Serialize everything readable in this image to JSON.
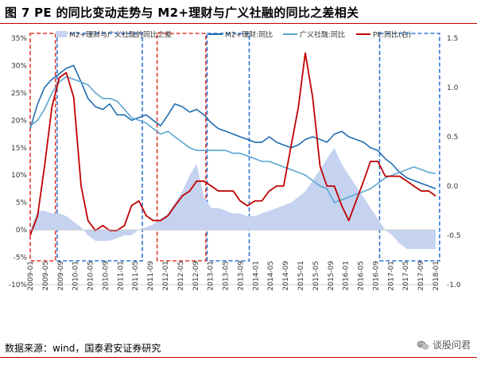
{
  "header": {
    "title": "图 7   PE 的同比变动走势与 M2+理财与广义社融的同比之差相关"
  },
  "footer": {
    "source": "数据来源：wind，国泰君安证券研究",
    "watermark": "谈股问君"
  },
  "colors": {
    "area": "#c5d3f0",
    "m2_line": "#1f6cb0",
    "social_line": "#5ba5d0",
    "pe_line": "#c00000",
    "box_red": "#e0392b",
    "box_blue": "#2e75d6"
  },
  "chart_data": {
    "type": "line",
    "legend_position": "top",
    "x_labels": [
      "2009-01",
      "2009-05",
      "2009-09",
      "2010-01",
      "2010-05",
      "2010-09",
      "2011-01",
      "2011-05",
      "2011-09",
      "2012-01",
      "2012-05",
      "2012-09",
      "2013-01",
      "2013-05",
      "2013-09",
      "2014-01",
      "2014-05",
      "2014-09",
      "2015-01",
      "2015-05",
      "2015-09",
      "2016-01",
      "2016-05",
      "2016-09",
      "2017-01",
      "2017-05",
      "2017-09",
      "2018-01"
    ],
    "x_range": [
      2009.0,
      2018.33
    ],
    "y_left": {
      "ticks": [
        "35%",
        "30%",
        "25%",
        "20%",
        "15%",
        "10%",
        "5%",
        "0%",
        "-5%",
        "-10%"
      ],
      "min": -10,
      "max": 35
    },
    "y_right": {
      "ticks": [
        "1.5",
        "1.0",
        "0.5",
        "0.0",
        "-0.5",
        "-1.0"
      ],
      "min": -1.0,
      "max": 1.5
    },
    "series": [
      {
        "name": "M2+理财与广义社融的同比之差",
        "kind": "area",
        "axis": "left",
        "x": [
          2009.0,
          2009.17,
          2009.33,
          2009.5,
          2009.67,
          2009.83,
          2010.0,
          2010.17,
          2010.33,
          2010.5,
          2010.67,
          2010.83,
          2011.0,
          2011.17,
          2011.33,
          2011.5,
          2011.67,
          2011.83,
          2012.0,
          2012.17,
          2012.33,
          2012.5,
          2012.67,
          2012.83,
          2013.0,
          2013.17,
          2013.33,
          2013.5,
          2013.67,
          2013.83,
          2014.0,
          2014.17,
          2014.33,
          2014.5,
          2014.67,
          2014.83,
          2015.0,
          2015.17,
          2015.33,
          2015.5,
          2015.67,
          2015.83,
          2016.0,
          2016.17,
          2016.33,
          2016.5,
          2016.67,
          2016.83,
          2017.0,
          2017.17,
          2017.33,
          2017.5,
          2017.67,
          2017.83,
          2018.0,
          2018.17,
          2018.33
        ],
        "values": [
          0,
          3.5,
          3.5,
          3.0,
          3.0,
          2.5,
          1.5,
          0.5,
          -1,
          -2,
          -2,
          -2,
          -1.5,
          -1,
          -1,
          0,
          0.5,
          1,
          2,
          3,
          5,
          7,
          10,
          12,
          6,
          4,
          4,
          3.5,
          3,
          3,
          2.5,
          2.5,
          3,
          3.5,
          4,
          4.5,
          5,
          6,
          7,
          9,
          11,
          13,
          15,
          12,
          10,
          8,
          6,
          4,
          2,
          0,
          -1,
          -2.5,
          -3.5,
          -3.5,
          -3.5,
          -3.5,
          -3.5
        ]
      },
      {
        "name": "M2+理财:同比",
        "kind": "line",
        "axis": "left",
        "x": [
          2009.0,
          2009.17,
          2009.33,
          2009.5,
          2009.67,
          2009.83,
          2010.0,
          2010.17,
          2010.33,
          2010.5,
          2010.67,
          2010.83,
          2011.0,
          2011.17,
          2011.33,
          2011.5,
          2011.67,
          2011.83,
          2012.0,
          2012.17,
          2012.33,
          2012.5,
          2012.67,
          2012.83,
          2013.0,
          2013.17,
          2013.33,
          2013.5,
          2013.67,
          2013.83,
          2014.0,
          2014.17,
          2014.33,
          2014.5,
          2014.67,
          2014.83,
          2015.0,
          2015.17,
          2015.33,
          2015.5,
          2015.67,
          2015.83,
          2016.0,
          2016.17,
          2016.33,
          2016.5,
          2016.67,
          2016.83,
          2017.0,
          2017.17,
          2017.33,
          2017.5,
          2017.67,
          2017.83,
          2018.0,
          2018.17,
          2018.33
        ],
        "values": [
          18.5,
          23,
          26,
          27.5,
          28.5,
          29.5,
          30,
          27,
          24,
          22.5,
          22,
          23,
          21,
          21,
          20,
          20.5,
          21,
          20,
          19,
          21,
          23,
          22.5,
          21.5,
          22,
          21,
          19.5,
          18.5,
          18,
          17.5,
          17,
          16.5,
          16,
          16,
          17,
          16,
          15.5,
          15,
          15.5,
          16.5,
          17,
          16.5,
          16,
          17.5,
          18,
          17,
          16.5,
          16,
          15,
          14.5,
          13,
          12,
          10.5,
          9.5,
          9,
          8.5,
          8,
          7.5
        ]
      },
      {
        "name": "广义社融:同比",
        "kind": "line",
        "axis": "left",
        "x": [
          2009.0,
          2009.17,
          2009.33,
          2009.5,
          2009.67,
          2009.83,
          2010.0,
          2010.17,
          2010.33,
          2010.5,
          2010.67,
          2010.83,
          2011.0,
          2011.17,
          2011.33,
          2011.5,
          2011.67,
          2011.83,
          2012.0,
          2012.17,
          2012.33,
          2012.5,
          2012.67,
          2012.83,
          2013.0,
          2013.17,
          2013.33,
          2013.5,
          2013.67,
          2013.83,
          2014.0,
          2014.17,
          2014.33,
          2014.5,
          2014.67,
          2014.83,
          2015.0,
          2015.17,
          2015.33,
          2015.5,
          2015.67,
          2015.83,
          2016.0,
          2016.17,
          2016.33,
          2016.5,
          2016.67,
          2016.83,
          2017.0,
          2017.17,
          2017.33,
          2017.5,
          2017.67,
          2017.83,
          2018.0,
          2018.17,
          2018.33
        ],
        "values": [
          19,
          20,
          22,
          25,
          27,
          28,
          27.5,
          27,
          26.5,
          25,
          24,
          24,
          23.5,
          22,
          20.5,
          20,
          19.5,
          18.5,
          17.5,
          18,
          17,
          16,
          15,
          14.5,
          14.5,
          14.5,
          14.5,
          14.5,
          14,
          14,
          13.5,
          13,
          12.5,
          12.5,
          12,
          11.5,
          11,
          10.5,
          10,
          9,
          8,
          7.5,
          5,
          5.5,
          6,
          6.5,
          7,
          7.5,
          8.5,
          9.5,
          10,
          10.5,
          11,
          11.5,
          11,
          10.5,
          10.3
        ]
      },
      {
        "name": "PE:同比(右)",
        "kind": "line",
        "axis": "right",
        "x": [
          2009.0,
          2009.17,
          2009.33,
          2009.5,
          2009.67,
          2009.83,
          2010.0,
          2010.17,
          2010.33,
          2010.5,
          2010.67,
          2010.83,
          2011.0,
          2011.17,
          2011.33,
          2011.5,
          2011.67,
          2011.83,
          2012.0,
          2012.17,
          2012.33,
          2012.5,
          2012.67,
          2012.83,
          2013.0,
          2013.17,
          2013.33,
          2013.5,
          2013.67,
          2013.83,
          2014.0,
          2014.17,
          2014.33,
          2014.5,
          2014.67,
          2014.83,
          2015.0,
          2015.17,
          2015.33,
          2015.5,
          2015.67,
          2015.83,
          2016.0,
          2016.17,
          2016.33,
          2016.5,
          2016.67,
          2016.83,
          2017.0,
          2017.17,
          2017.33,
          2017.5,
          2017.67,
          2017.83,
          2018.0,
          2018.17,
          2018.33
        ],
        "values": [
          -0.5,
          -0.3,
          0.2,
          0.8,
          1.1,
          1.15,
          0.9,
          0.0,
          -0.35,
          -0.45,
          -0.4,
          -0.45,
          -0.45,
          -0.4,
          -0.2,
          -0.15,
          -0.3,
          -0.35,
          -0.35,
          -0.3,
          -0.2,
          -0.1,
          -0.05,
          0.05,
          0.05,
          0.0,
          -0.05,
          -0.05,
          -0.05,
          -0.15,
          -0.2,
          -0.15,
          -0.15,
          -0.05,
          0.0,
          0.0,
          0.4,
          0.8,
          1.35,
          0.9,
          0.2,
          0.0,
          0.0,
          -0.2,
          -0.35,
          -0.15,
          0.05,
          0.25,
          0.25,
          0.1,
          0.1,
          0.1,
          0.05,
          0.0,
          -0.05,
          -0.05,
          -0.1
        ]
      }
    ],
    "highlight_boxes": [
      {
        "color": "red",
        "x_from": 2009.0,
        "x_to": 2009.58
      },
      {
        "color": "blue",
        "x_from": 2009.62,
        "x_to": 2011.58
      },
      {
        "color": "red",
        "x_from": 2011.92,
        "x_to": 2013.04
      },
      {
        "color": "blue",
        "x_from": 2013.07,
        "x_to": 2014.04
      },
      {
        "color": "blue",
        "x_from": 2017.04,
        "x_to": 2018.42
      }
    ]
  }
}
